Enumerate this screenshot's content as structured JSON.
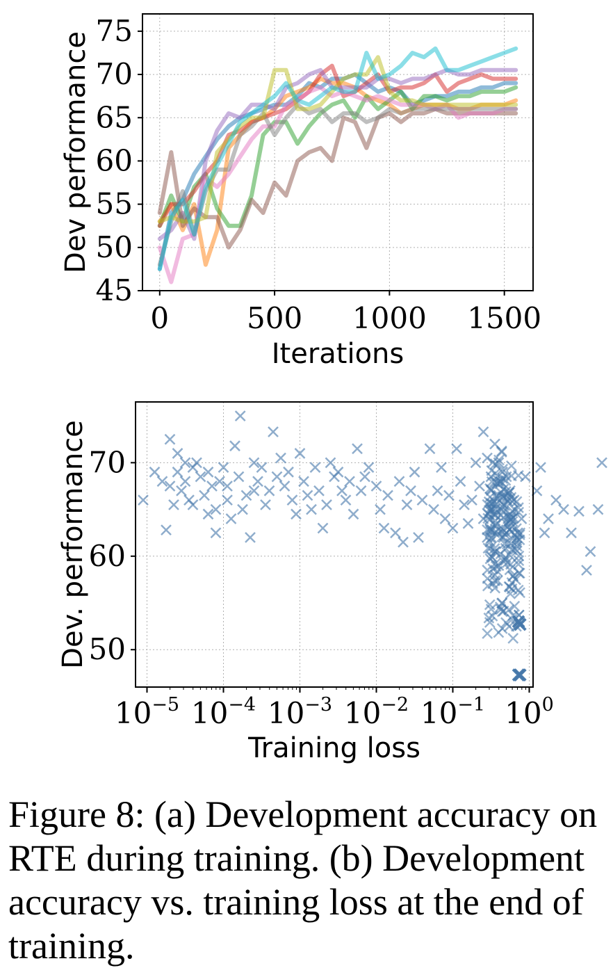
{
  "caption": "Figure 8: (a) Development accuracy on RTE during training. (b) Development accuracy vs. training loss at the end of training.",
  "chart_data": [
    {
      "type": "line",
      "xlabel": "Iterations",
      "ylabel": "Dev performance",
      "xlim": [
        -75,
        1625
      ],
      "ylim": [
        45,
        77
      ],
      "xticks": [
        "0",
        "500",
        "1000",
        "1500"
      ],
      "yticks": [
        "45",
        "50",
        "55",
        "60",
        "65",
        "70",
        "75"
      ],
      "grid": true,
      "x": [
        0,
        50,
        100,
        150,
        200,
        250,
        300,
        350,
        400,
        450,
        500,
        550,
        600,
        650,
        700,
        750,
        800,
        850,
        900,
        950,
        1000,
        1050,
        1100,
        1150,
        1200,
        1250,
        1300,
        1350,
        1400,
        1450,
        1500,
        1550
      ],
      "series": [
        {
          "color": "#1f77b4",
          "values": [
            47.5,
            54.0,
            55.5,
            58.5,
            60.5,
            62.5,
            64.0,
            65.0,
            65.5,
            66.0,
            66.5,
            66.5,
            67.5,
            69.0,
            68.5,
            69.5,
            69.5,
            70.0,
            69.0,
            68.0,
            68.5,
            68.0,
            66.5,
            67.0,
            67.5,
            67.5,
            68.0,
            68.0,
            68.5,
            68.5,
            69.0,
            69.0
          ]
        },
        {
          "color": "#ff7f0e",
          "values": [
            53.0,
            55.0,
            52.0,
            55.0,
            48.0,
            52.0,
            61.5,
            63.0,
            64.5,
            65.0,
            66.0,
            67.5,
            68.0,
            68.5,
            69.5,
            69.0,
            69.0,
            68.5,
            67.5,
            67.0,
            66.5,
            65.5,
            66.0,
            66.5,
            66.5,
            66.5,
            66.0,
            66.0,
            66.5,
            66.5,
            66.5,
            67.0
          ]
        },
        {
          "color": "#2ca02c",
          "values": [
            52.5,
            56.0,
            53.0,
            57.0,
            58.5,
            54.5,
            52.5,
            52.5,
            56.0,
            63.0,
            64.5,
            64.5,
            62.0,
            64.0,
            65.5,
            66.5,
            67.0,
            65.0,
            67.5,
            66.0,
            67.0,
            68.0,
            66.0,
            67.5,
            67.5,
            67.0,
            67.5,
            67.5,
            68.0,
            68.0,
            68.0,
            68.5
          ]
        },
        {
          "color": "#d62728",
          "values": [
            52.5,
            55.0,
            55.0,
            56.5,
            58.5,
            60.0,
            63.0,
            63.5,
            64.5,
            65.0,
            65.5,
            66.0,
            67.0,
            68.0,
            70.0,
            71.0,
            67.5,
            68.0,
            69.0,
            70.0,
            68.0,
            68.5,
            68.5,
            69.0,
            70.0,
            68.0,
            69.0,
            69.5,
            70.0,
            69.5,
            69.5,
            69.5
          ]
        },
        {
          "color": "#9467bd",
          "values": [
            51.0,
            52.0,
            54.0,
            51.0,
            60.0,
            63.5,
            65.5,
            65.0,
            66.5,
            66.5,
            66.0,
            68.5,
            69.0,
            70.0,
            70.5,
            68.5,
            68.5,
            68.5,
            68.5,
            69.5,
            69.5,
            69.0,
            69.5,
            69.5,
            70.0,
            70.5,
            70.0,
            70.0,
            70.5,
            70.5,
            70.5,
            70.5
          ]
        },
        {
          "color": "#8c564b",
          "values": [
            54.0,
            61.0,
            52.5,
            54.5,
            53.5,
            53.5,
            50.0,
            52.0,
            55.5,
            54.0,
            57.5,
            56.0,
            60.0,
            61.0,
            61.5,
            60.0,
            65.0,
            64.5,
            61.5,
            65.0,
            65.5,
            64.5,
            65.5,
            65.5,
            66.0,
            65.5,
            65.5,
            65.5,
            65.5,
            65.5,
            65.5,
            65.5
          ]
        },
        {
          "color": "#e377c2",
          "values": [
            50.0,
            46.0,
            51.0,
            51.5,
            58.0,
            57.0,
            58.5,
            60.5,
            62.5,
            64.0,
            64.0,
            66.5,
            67.0,
            68.0,
            68.5,
            67.5,
            68.0,
            67.5,
            67.0,
            67.5,
            67.0,
            66.5,
            66.5,
            66.5,
            66.0,
            66.5,
            65.0,
            65.5,
            65.5,
            65.5,
            66.0,
            66.0
          ]
        },
        {
          "color": "#7f7f7f",
          "values": [
            48.0,
            53.0,
            56.5,
            51.5,
            56.5,
            59.0,
            59.0,
            63.0,
            64.0,
            65.5,
            63.0,
            65.0,
            66.5,
            65.5,
            66.0,
            64.5,
            65.5,
            65.5,
            64.5,
            65.0,
            66.0,
            65.5,
            66.0,
            66.0,
            66.0,
            66.0,
            66.0,
            66.0,
            66.0,
            66.0,
            66.0,
            66.0
          ]
        },
        {
          "color": "#bcbd22",
          "values": [
            53.0,
            53.5,
            53.0,
            53.0,
            53.5,
            61.0,
            62.5,
            64.0,
            65.0,
            65.0,
            70.5,
            70.5,
            66.0,
            66.0,
            66.5,
            68.0,
            69.5,
            70.0,
            70.0,
            72.0,
            68.0,
            67.0,
            67.0,
            66.5,
            66.5,
            66.5,
            66.5,
            66.5,
            66.5,
            66.5,
            66.5,
            66.5
          ]
        },
        {
          "color": "#17becf",
          "values": [
            47.5,
            53.5,
            55.5,
            51.5,
            57.0,
            59.5,
            62.0,
            64.5,
            65.5,
            66.5,
            67.5,
            69.0,
            67.0,
            66.5,
            67.5,
            68.5,
            68.0,
            68.0,
            72.5,
            69.5,
            70.0,
            71.0,
            72.5,
            72.0,
            73.0,
            70.5,
            70.5,
            71.0,
            71.5,
            72.0,
            72.5,
            73.0
          ]
        }
      ]
    },
    {
      "type": "scatter",
      "marker": "x",
      "color": "#4477aa",
      "xlabel": "Training loss",
      "ylabel": "Dev. performance",
      "xscale": "log",
      "xlim": [
        -5.15,
        0.05
      ],
      "ylim": [
        46,
        76.5
      ],
      "xticks": [
        {
          "base": "10",
          "exp": "−5"
        },
        {
          "base": "10",
          "exp": "−4"
        },
        {
          "base": "10",
          "exp": "−3"
        },
        {
          "base": "10",
          "exp": "−2"
        },
        {
          "base": "10",
          "exp": "−1"
        },
        {
          "base": "10",
          "exp": "0"
        }
      ],
      "yticks": [
        "50",
        "60",
        "70"
      ],
      "grid": true,
      "points": [
        [
          -5.05,
          66
        ],
        [
          -4.9,
          69
        ],
        [
          -4.8,
          68
        ],
        [
          -4.7,
          67.5
        ],
        [
          -4.75,
          62.8
        ],
        [
          -4.7,
          72.5
        ],
        [
          -4.65,
          65.5
        ],
        [
          -4.6,
          71
        ],
        [
          -4.6,
          69
        ],
        [
          -4.55,
          67
        ],
        [
          -4.5,
          68
        ],
        [
          -4.5,
          70
        ],
        [
          -4.45,
          66
        ],
        [
          -4.4,
          65.5
        ],
        [
          -4.4,
          69.5
        ],
        [
          -4.35,
          70
        ],
        [
          -4.3,
          68.5
        ],
        [
          -4.25,
          66.5
        ],
        [
          -4.2,
          64.5
        ],
        [
          -4.2,
          69
        ],
        [
          -4.15,
          67.5
        ],
        [
          -4.1,
          62.5
        ],
        [
          -4.1,
          65
        ],
        [
          -4.05,
          68
        ],
        [
          -4.0,
          69.5
        ],
        [
          -3.95,
          66
        ],
        [
          -3.9,
          64
        ],
        [
          -3.85,
          71.8
        ],
        [
          -3.95,
          67.5
        ],
        [
          -3.8,
          68.5
        ],
        [
          -3.78,
          75
        ],
        [
          -3.75,
          65
        ],
        [
          -3.7,
          66.5
        ],
        [
          -3.65,
          62
        ],
        [
          -3.6,
          70
        ],
        [
          -3.6,
          67
        ],
        [
          -3.55,
          68
        ],
        [
          -3.5,
          69.5
        ],
        [
          -3.45,
          65.5
        ],
        [
          -3.4,
          67
        ],
        [
          -3.35,
          73.3
        ],
        [
          -3.3,
          68.5
        ],
        [
          -3.25,
          70.5
        ],
        [
          -3.2,
          67.5
        ],
        [
          -3.15,
          69
        ],
        [
          -3.1,
          66
        ],
        [
          -3.05,
          64.5
        ],
        [
          -3.0,
          71
        ],
        [
          -2.95,
          68
        ],
        [
          -2.9,
          66.5
        ],
        [
          -2.85,
          65
        ],
        [
          -2.8,
          69.5
        ],
        [
          -2.75,
          67
        ],
        [
          -2.7,
          63
        ],
        [
          -2.65,
          65.5
        ],
        [
          -2.6,
          70
        ],
        [
          -2.55,
          68.5
        ],
        [
          -2.5,
          69
        ],
        [
          -2.45,
          67
        ],
        [
          -2.4,
          66
        ],
        [
          -2.35,
          68
        ],
        [
          -2.3,
          64.5
        ],
        [
          -2.25,
          71.5
        ],
        [
          -2.2,
          67
        ],
        [
          -2.15,
          68.5
        ],
        [
          -2.1,
          69.5
        ],
        [
          -2.0,
          67.5
        ],
        [
          -1.95,
          65
        ],
        [
          -1.9,
          63
        ],
        [
          -1.85,
          66.5
        ],
        [
          -1.75,
          62.5
        ],
        [
          -1.7,
          68
        ],
        [
          -1.65,
          61.5
        ],
        [
          -1.6,
          65.5
        ],
        [
          -1.55,
          67
        ],
        [
          -1.5,
          69
        ],
        [
          -1.45,
          62
        ],
        [
          -1.4,
          66
        ],
        [
          -1.3,
          71.5
        ],
        [
          -1.25,
          65
        ],
        [
          -1.2,
          67
        ],
        [
          -1.15,
          69.5
        ],
        [
          -1.1,
          64
        ],
        [
          -1.05,
          66.5
        ],
        [
          -1.0,
          63
        ],
        [
          -0.95,
          71.5
        ],
        [
          -0.9,
          68
        ],
        [
          -0.85,
          65.5
        ],
        [
          -0.8,
          63.5
        ],
        [
          -0.75,
          66
        ],
        [
          -0.7,
          70
        ],
        [
          -0.65,
          67.5
        ],
        [
          -0.6,
          64
        ],
        [
          -0.55,
          62
        ],
        [
          -0.5,
          68.5
        ],
        [
          -0.5,
          65
        ],
        [
          -0.45,
          72
        ],
        [
          -0.4,
          66.5
        ],
        [
          -0.4,
          59
        ],
        [
          -0.35,
          69
        ],
        [
          -0.3,
          63.5
        ],
        [
          -0.25,
          67
        ],
        [
          -0.2,
          66
        ],
        [
          -0.15,
          62.5
        ],
        [
          -0.1,
          64
        ],
        [
          -0.05,
          68.5
        ],
        [
          -0.45,
          60.5
        ],
        [
          -0.6,
          73.3
        ],
        [
          -0.55,
          70.5
        ],
        [
          -0.3,
          62.5
        ],
        [
          -0.25,
          64.5
        ],
        [
          -0.4,
          70
        ],
        [
          0.1,
          67
        ],
        [
          0.15,
          69.5
        ],
        [
          0.2,
          62.5
        ],
        [
          0.25,
          64
        ],
        [
          0.35,
          66
        ],
        [
          0.45,
          65
        ],
        [
          0.55,
          62.5
        ],
        [
          0.65,
          64.8
        ],
        [
          0.75,
          58.5
        ],
        [
          0.8,
          60.5
        ],
        [
          0.9,
          65
        ],
        [
          0.95,
          70
        ]
      ],
      "end_cluster": {
        "count": 180,
        "x_range": [
          -0.55,
          -0.12
        ],
        "y_range": [
          51,
          71.5
        ]
      },
      "emphasized_points": [
        [
          -0.14,
          53
        ],
        [
          -0.12,
          52.7
        ],
        [
          -0.14,
          47.3
        ],
        [
          -0.12,
          47.3
        ]
      ]
    }
  ]
}
